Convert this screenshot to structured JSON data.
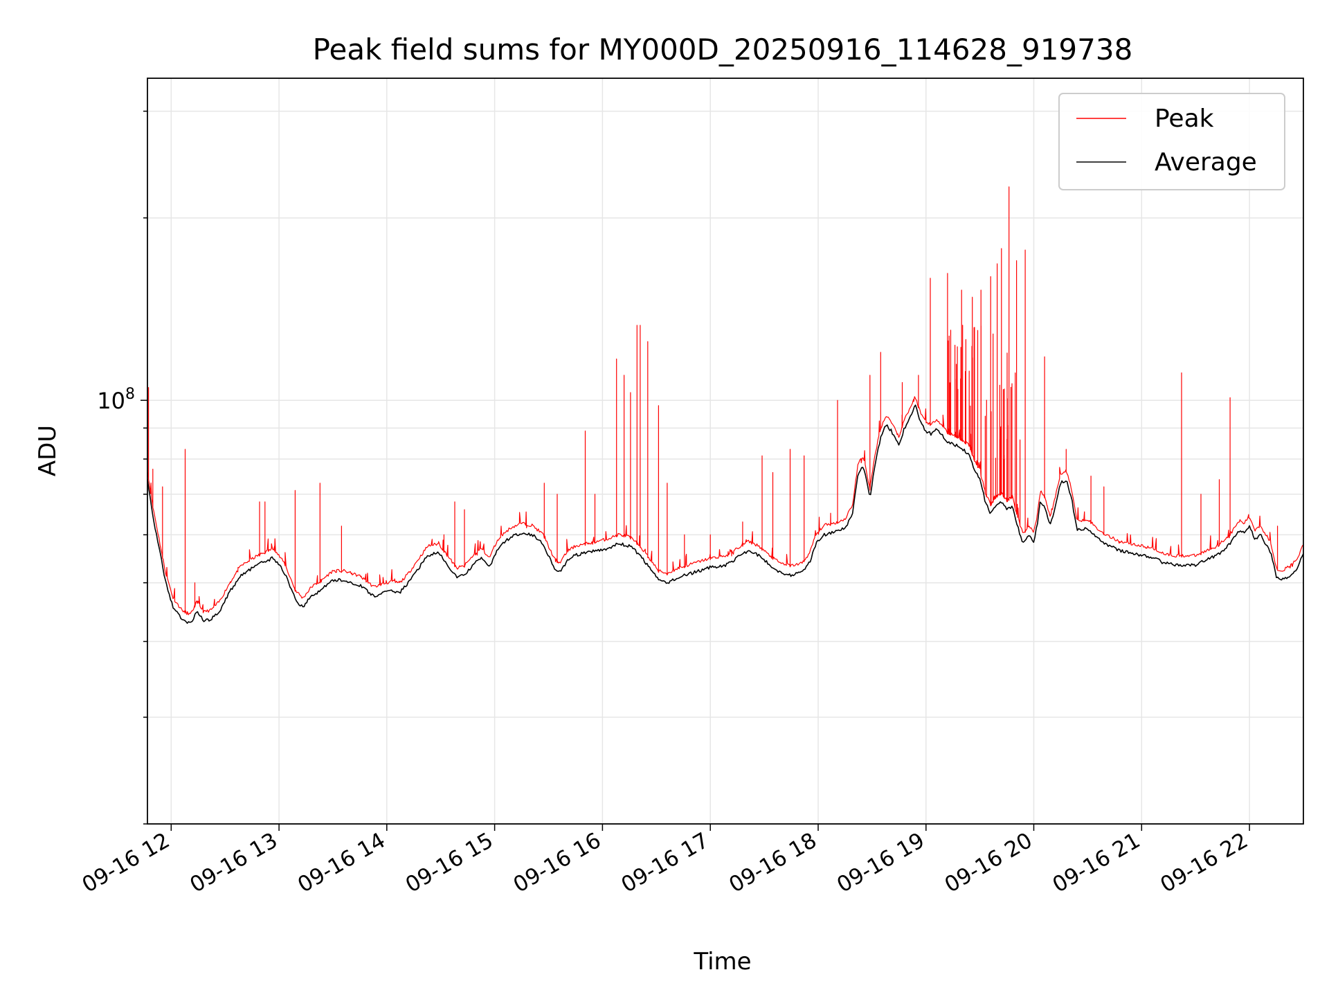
{
  "chart_data": {
    "type": "line",
    "title": "Peak field sums for MY000D_20250916_114628_919738",
    "xlabel": "Time",
    "ylabel": "ADU",
    "yscale": "log",
    "xlim": [
      11.78,
      22.5
    ],
    "ylim": [
      20000000.0,
      340000000.0
    ],
    "grid": true,
    "legend_position": "top-right",
    "x_tick_labels": [
      "09-16 12",
      "09-16 13",
      "09-16 14",
      "09-16 15",
      "09-16 16",
      "09-16 17",
      "09-16 18",
      "09-16 19",
      "09-16 20",
      "09-16 21",
      "09-16 22"
    ],
    "x_tick_values": [
      12,
      13,
      14,
      15,
      16,
      17,
      18,
      19,
      20,
      21,
      22
    ],
    "y_major_tick": {
      "value": 100000000,
      "label_base": "10",
      "label_exp": "8"
    },
    "y_minor_ticks": [
      20000000,
      30000000,
      40000000,
      50000000,
      60000000,
      70000000,
      80000000,
      90000000,
      200000000,
      300000000
    ],
    "colors": {
      "peak": "#ff0000",
      "average": "#000000"
    },
    "series": [
      {
        "name": "Peak",
        "color": "#ff0000",
        "baseline_offset": 1.03,
        "spikes": [
          [
            11.79,
            105000000.0
          ],
          [
            11.83,
            77000000.0
          ],
          [
            11.92,
            72000000.0
          ],
          [
            11.96,
            53000000.0
          ],
          [
            12.13,
            83000000.0
          ],
          [
            12.22,
            50000000.0
          ],
          [
            12.55,
            50000000.0
          ],
          [
            12.62,
            53000000.0
          ],
          [
            12.82,
            68000000.0
          ],
          [
            12.87,
            68000000.0
          ],
          [
            12.93,
            58000000.0
          ],
          [
            13.15,
            71000000.0
          ],
          [
            13.38,
            73000000.0
          ],
          [
            13.58,
            62000000.0
          ],
          [
            14.2,
            52000000.0
          ],
          [
            14.42,
            59000000.0
          ],
          [
            14.53,
            60000000.0
          ],
          [
            14.63,
            68000000.0
          ],
          [
            14.72,
            66000000.0
          ],
          [
            14.82,
            58000000.0
          ],
          [
            15.06,
            62000000.0
          ],
          [
            15.46,
            73000000.0
          ],
          [
            15.58,
            70000000.0
          ],
          [
            15.84,
            89000000.0
          ],
          [
            15.93,
            70000000.0
          ],
          [
            16.13,
            117000000.0
          ],
          [
            16.2,
            110000000.0
          ],
          [
            16.26,
            103000000.0
          ],
          [
            16.32,
            133000000.0
          ],
          [
            16.35,
            133000000.0
          ],
          [
            16.42,
            125000000.0
          ],
          [
            16.52,
            98000000.0
          ],
          [
            16.6,
            73000000.0
          ],
          [
            16.76,
            60000000.0
          ],
          [
            17.0,
            60000000.0
          ],
          [
            17.3,
            63000000.0
          ],
          [
            17.48,
            81000000.0
          ],
          [
            17.58,
            76000000.0
          ],
          [
            17.74,
            83000000.0
          ],
          [
            17.87,
            81000000.0
          ],
          [
            18.18,
            100000000.0
          ],
          [
            18.48,
            110000000.0
          ],
          [
            18.58,
            120000000.0
          ],
          [
            18.78,
            107000000.0
          ],
          [
            18.93,
            110000000.0
          ],
          [
            19.04,
            159000000.0
          ],
          [
            19.2,
            162000000.0
          ],
          [
            19.33,
            152000000.0
          ],
          [
            19.43,
            148000000.0
          ],
          [
            19.51,
            152000000.0
          ],
          [
            19.6,
            160000000.0
          ],
          [
            19.66,
            168000000.0
          ],
          [
            19.7,
            178000000.0
          ],
          [
            19.77,
            225000000.0
          ],
          [
            19.84,
            170000000.0
          ],
          [
            19.92,
            177000000.0
          ],
          [
            20.1,
            118000000.0
          ],
          [
            20.3,
            83000000.0
          ],
          [
            20.53,
            75000000.0
          ],
          [
            20.65,
            72000000.0
          ],
          [
            21.37,
            111000000.0
          ],
          [
            21.55,
            70000000.0
          ],
          [
            21.72,
            74000000.0
          ],
          [
            21.82,
            101000000.0
          ],
          [
            22.26,
            62000000.0
          ]
        ],
        "dense_band": {
          "x_range": [
            19.2,
            19.9
          ],
          "count": 60,
          "y_range": [
            78000000.0,
            135000000.0
          ]
        },
        "minor_spikes": {
          "count": 140,
          "max_ratio": 1.07
        }
      },
      {
        "name": "Average",
        "color": "#000000",
        "x": [
          11.78,
          11.82,
          11.88,
          11.95,
          12.02,
          12.1,
          12.18,
          12.24,
          12.3,
          12.37,
          12.45,
          12.55,
          12.65,
          12.8,
          12.95,
          13.05,
          13.15,
          13.22,
          13.3,
          13.38,
          13.5,
          13.6,
          13.75,
          13.88,
          13.95,
          14.05,
          14.12,
          14.2,
          14.3,
          14.38,
          14.48,
          14.58,
          14.65,
          14.72,
          14.8,
          14.88,
          14.95,
          15.0,
          15.05,
          15.15,
          15.25,
          15.35,
          15.45,
          15.55,
          15.6,
          15.68,
          15.75,
          15.85,
          15.95,
          16.05,
          16.15,
          16.25,
          16.35,
          16.45,
          16.52,
          16.6,
          16.7,
          16.85,
          17.0,
          17.15,
          17.25,
          17.35,
          17.45,
          17.55,
          17.65,
          17.75,
          17.85,
          17.92,
          17.98,
          18.05,
          18.15,
          18.25,
          18.32,
          18.37,
          18.42,
          18.48,
          18.53,
          18.58,
          18.63,
          18.68,
          18.75,
          18.8,
          18.85,
          18.9,
          18.95,
          19.0,
          19.05,
          19.1,
          19.2,
          19.3,
          19.4,
          19.45,
          19.5,
          19.55,
          19.6,
          19.65,
          19.7,
          19.75,
          19.8,
          19.85,
          19.9,
          19.95,
          20.0,
          20.03,
          20.06,
          20.1,
          20.15,
          20.2,
          20.25,
          20.3,
          20.35,
          20.4,
          20.5,
          20.6,
          20.7,
          20.8,
          20.9,
          21.0,
          21.1,
          21.2,
          21.3,
          21.4,
          21.5,
          21.6,
          21.7,
          21.75,
          21.8,
          21.85,
          21.9,
          21.95,
          22.0,
          22.05,
          22.1,
          22.15,
          22.2,
          22.25,
          22.3,
          22.38,
          22.45,
          22.5
        ],
        "y": [
          74000000.0,
          66000000.0,
          58000000.0,
          50000000.0,
          45500000.0,
          43500000.0,
          42800000.0,
          45000000.0,
          43200000.0,
          43500000.0,
          45000000.0,
          48500000.0,
          51500000.0,
          53500000.0,
          55000000.0,
          52000000.0,
          47000000.0,
          45500000.0,
          47500000.0,
          48500000.0,
          50500000.0,
          50500000.0,
          49500000.0,
          47500000.0,
          48000000.0,
          48500000.0,
          48200000.0,
          50000000.0,
          53000000.0,
          55500000.0,
          56000000.0,
          53000000.0,
          51000000.0,
          51500000.0,
          53500000.0,
          55000000.0,
          53000000.0,
          55500000.0,
          57500000.0,
          59500000.0,
          60500000.0,
          60000000.0,
          58000000.0,
          53000000.0,
          52000000.0,
          54500000.0,
          55500000.0,
          56000000.0,
          56500000.0,
          57000000.0,
          58000000.0,
          57500000.0,
          55500000.0,
          52500000.0,
          50500000.0,
          50000000.0,
          51000000.0,
          52000000.0,
          53000000.0,
          53500000.0,
          55000000.0,
          56500000.0,
          55500000.0,
          53500000.0,
          52000000.0,
          51500000.0,
          52000000.0,
          54000000.0,
          58000000.0,
          60000000.0,
          60500000.0,
          61500000.0,
          65000000.0,
          76000000.0,
          78000000.0,
          69000000.0,
          79000000.0,
          87000000.0,
          91000000.0,
          89000000.0,
          84000000.0,
          90000000.0,
          93500000.0,
          98000000.0,
          92000000.0,
          89000000.0,
          88000000.0,
          90000000.0,
          85500000.0,
          84000000.0,
          81500000.0,
          77000000.0,
          74000000.0,
          68000000.0,
          65000000.0,
          67000000.0,
          68000000.0,
          66000000.0,
          67000000.0,
          62000000.0,
          58000000.0,
          60000000.0,
          58500000.0,
          62000000.0,
          68000000.0,
          67000000.0,
          62000000.0,
          67000000.0,
          73000000.0,
          74000000.0,
          69000000.0,
          61000000.0,
          61500000.0,
          59000000.0,
          57500000.0,
          56500000.0,
          56000000.0,
          55500000.0,
          55000000.0,
          54000000.0,
          53500000.0,
          53500000.0,
          53500000.0,
          54500000.0,
          55500000.0,
          56500000.0,
          57500000.0,
          59000000.0,
          61000000.0,
          60500000.0,
          62000000.0,
          59000000.0,
          60000000.0,
          58000000.0,
          56000000.0,
          51000000.0,
          50500000.0,
          51500000.0,
          53000000.0,
          56000000.0
        ]
      }
    ]
  }
}
